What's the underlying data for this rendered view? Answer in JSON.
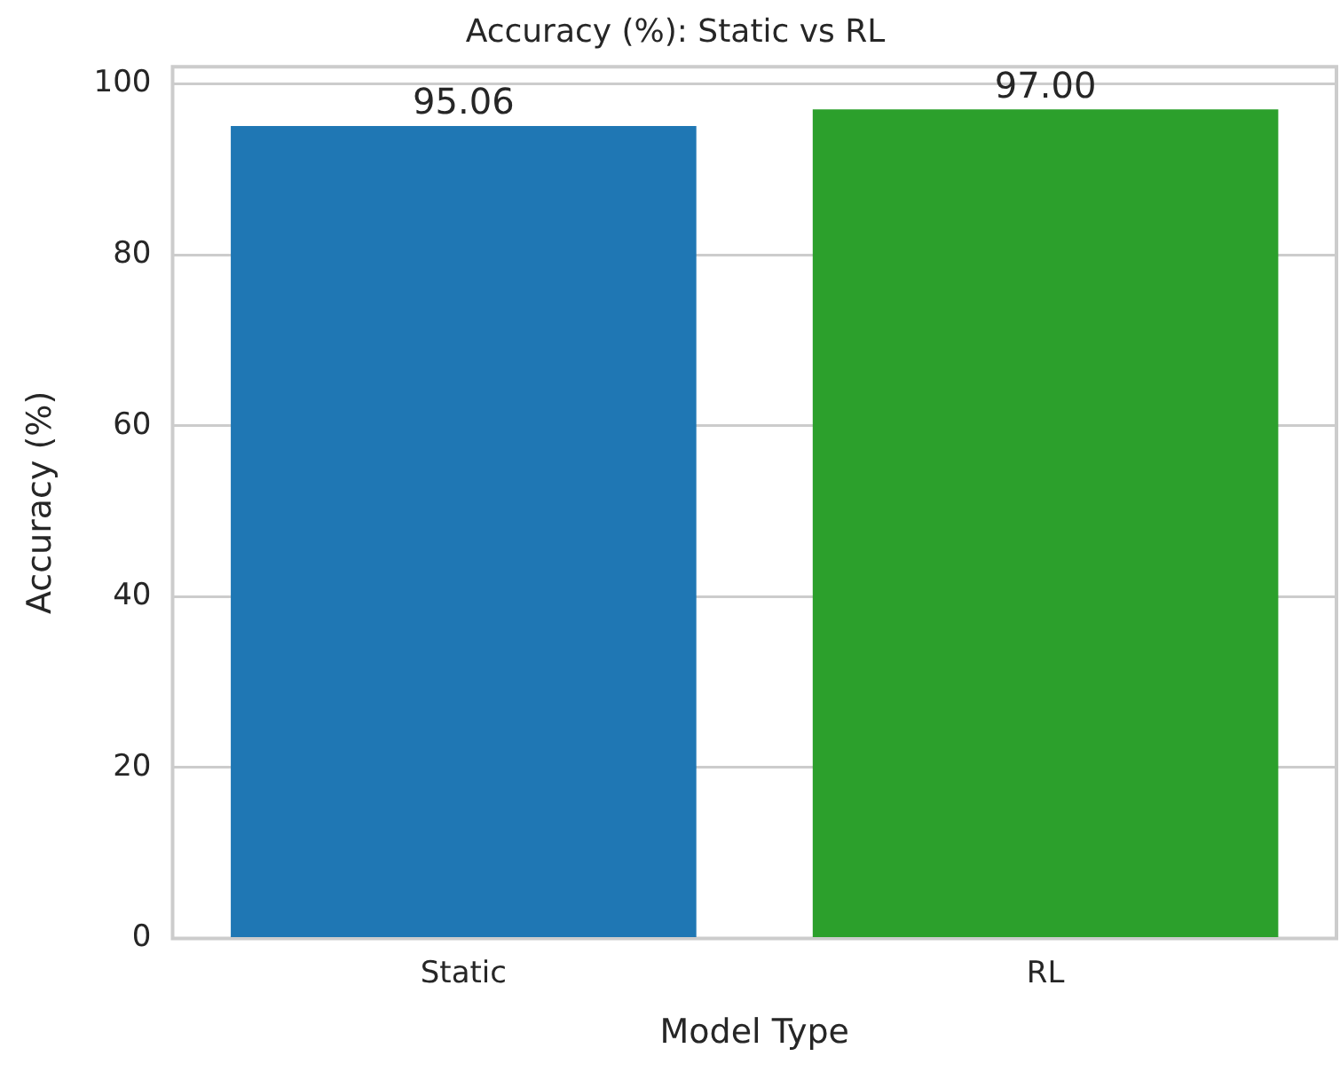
{
  "chart_data": {
    "type": "bar",
    "title": "Accuracy (%): Static vs RL",
    "xlabel": "Model Type",
    "ylabel": "Accuracy (%)",
    "categories": [
      "Static",
      "RL"
    ],
    "values": [
      95.06,
      97.0
    ],
    "colors": [
      "#1f77b4",
      "#2ca02c"
    ],
    "value_labels": [
      "95.06",
      "97.00"
    ],
    "ylim": [
      0,
      102
    ],
    "yticks": [
      0,
      20,
      40,
      60,
      80,
      100
    ],
    "grid": "y"
  }
}
